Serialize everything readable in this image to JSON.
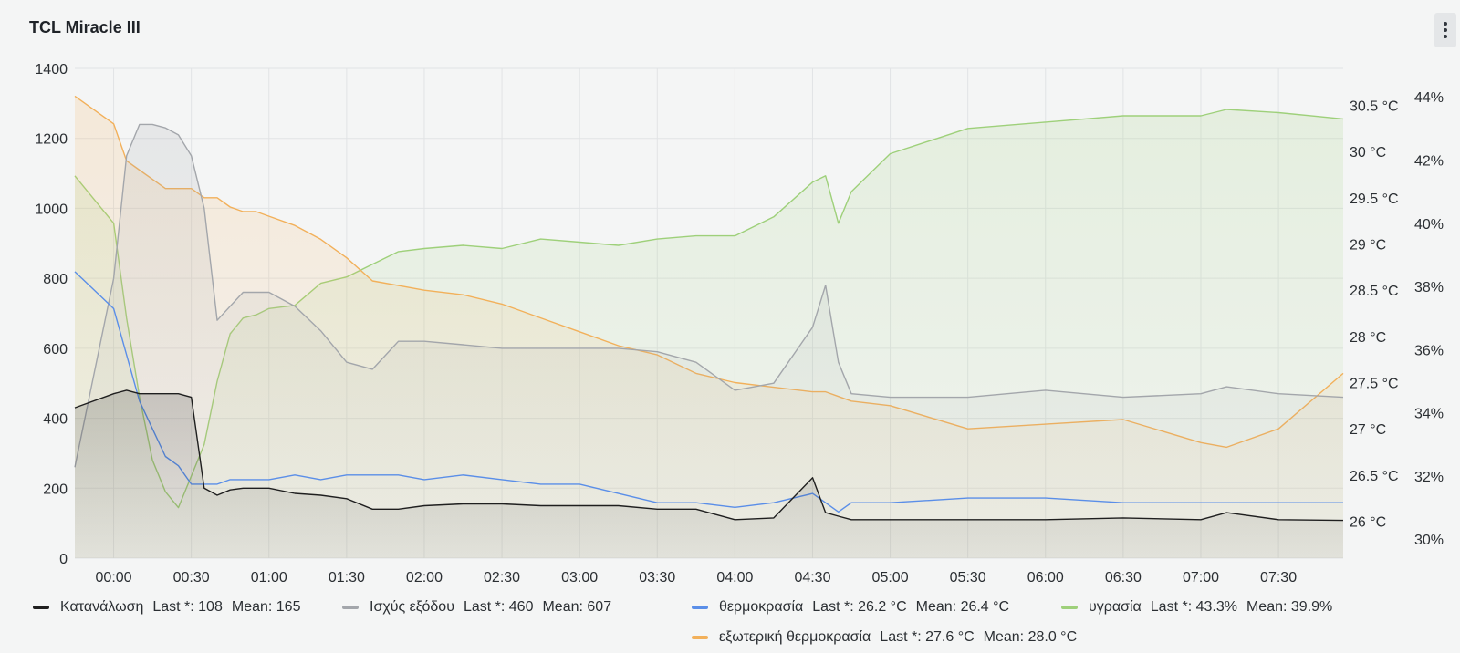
{
  "panel": {
    "title": "TCL Miracle III"
  },
  "chart_data": {
    "type": "line",
    "x": [
      "23:45",
      "00:00",
      "00:05",
      "00:10",
      "00:15",
      "00:20",
      "00:25",
      "00:30",
      "00:35",
      "00:40",
      "00:45",
      "00:50",
      "00:55",
      "01:00",
      "01:10",
      "01:20",
      "01:30",
      "01:40",
      "01:50",
      "02:00",
      "02:15",
      "02:30",
      "02:45",
      "03:00",
      "03:15",
      "03:30",
      "03:45",
      "04:00",
      "04:15",
      "04:30",
      "04:35",
      "04:40",
      "04:45",
      "05:00",
      "05:30",
      "06:00",
      "06:30",
      "07:00",
      "07:10",
      "07:30",
      "07:55"
    ],
    "xticks": [
      "00:00",
      "00:30",
      "01:00",
      "01:30",
      "02:00",
      "02:30",
      "03:00",
      "03:30",
      "04:00",
      "04:30",
      "05:00",
      "05:30",
      "06:00",
      "06:30",
      "07:00",
      "07:30"
    ],
    "axes": {
      "left": {
        "ticks": [
          "0",
          "200",
          "400",
          "600",
          "800",
          "1000",
          "1200",
          "1400"
        ],
        "ylim": [
          0,
          1400
        ]
      },
      "right_temp": {
        "ticks": [
          "26 °C",
          "26.5 °C",
          "27 °C",
          "27.5 °C",
          "28 °C",
          "28.5 °C",
          "29 °C",
          "29.5 °C",
          "30 °C",
          "30.5 °C"
        ],
        "ylim": [
          25.6,
          30.9
        ]
      },
      "right_hum": {
        "ticks": [
          "30%",
          "32%",
          "34%",
          "36%",
          "38%",
          "40%",
          "42%",
          "44%"
        ],
        "ylim": [
          29.4,
          44.9
        ]
      }
    },
    "series": [
      {
        "name": "Κατανάλωση",
        "axis": "left",
        "color": "#1f1f1f",
        "fill": true,
        "values": [
          430,
          470,
          480,
          470,
          470,
          470,
          470,
          460,
          200,
          180,
          195,
          200,
          200,
          200,
          185,
          180,
          170,
          140,
          140,
          150,
          155,
          155,
          150,
          150,
          150,
          140,
          140,
          110,
          115,
          230,
          130,
          120,
          110,
          110,
          110,
          110,
          115,
          110,
          130,
          110,
          108
        ]
      },
      {
        "name": "Ισχύς εξόδου",
        "axis": "left",
        "color": "#a3a6ab",
        "fill": true,
        "values": [
          260,
          800,
          1150,
          1240,
          1240,
          1230,
          1210,
          1150,
          1000,
          680,
          720,
          760,
          760,
          760,
          720,
          650,
          560,
          540,
          620,
          620,
          610,
          600,
          600,
          600,
          600,
          590,
          560,
          480,
          500,
          660,
          780,
          560,
          470,
          460,
          460,
          480,
          460,
          470,
          490,
          470,
          460
        ]
      },
      {
        "name": "θερμοκρασία",
        "axis": "right_temp",
        "color": "#5a8ee8",
        "fill": false,
        "values": [
          28.7,
          28.3,
          27.8,
          27.3,
          27.0,
          26.7,
          26.6,
          26.4,
          26.4,
          26.4,
          26.45,
          26.45,
          26.45,
          26.45,
          26.5,
          26.45,
          26.5,
          26.5,
          26.5,
          26.45,
          26.5,
          26.45,
          26.4,
          26.4,
          26.3,
          26.2,
          26.2,
          26.15,
          26.2,
          26.3,
          26.2,
          26.1,
          26.2,
          26.2,
          26.25,
          26.25,
          26.2,
          26.2,
          26.2,
          26.2,
          26.2
        ]
      },
      {
        "name": "υγρασία",
        "axis": "right_hum",
        "color": "#9ed07a",
        "fill": true,
        "values": [
          41.5,
          40.0,
          37.0,
          34.5,
          32.5,
          31.5,
          31.0,
          32.0,
          33.0,
          35.0,
          36.5,
          37.0,
          37.1,
          37.3,
          37.4,
          38.1,
          38.3,
          38.7,
          39.1,
          39.2,
          39.3,
          39.2,
          39.5,
          39.4,
          39.3,
          39.5,
          39.6,
          39.6,
          40.2,
          41.3,
          41.5,
          40.0,
          41.0,
          42.2,
          43.0,
          43.2,
          43.4,
          43.4,
          43.6,
          43.5,
          43.3
        ]
      },
      {
        "name": "εξωτερική θερμοκρασία",
        "axis": "right_temp",
        "color": "#f2b05a",
        "fill": true,
        "values": [
          30.6,
          30.3,
          29.9,
          29.8,
          29.7,
          29.6,
          29.6,
          29.6,
          29.5,
          29.5,
          29.4,
          29.35,
          29.35,
          29.3,
          29.2,
          29.05,
          28.85,
          28.6,
          28.55,
          28.5,
          28.45,
          28.35,
          28.2,
          28.05,
          27.9,
          27.8,
          27.6,
          27.5,
          27.45,
          27.4,
          27.4,
          27.35,
          27.3,
          27.25,
          27.0,
          27.05,
          27.1,
          26.85,
          26.8,
          27.0,
          27.6
        ]
      }
    ]
  },
  "legend": [
    {
      "name": "Κατανάλωση",
      "last_label": "Last *:",
      "last": "108",
      "mean_label": "Mean:",
      "mean": "165",
      "color": "#1f1f1f"
    },
    {
      "name": "Ισχύς εξόδου",
      "last_label": "Last *:",
      "last": "460",
      "mean_label": "Mean:",
      "mean": "607",
      "color": "#a3a6ab"
    },
    {
      "name": "θερμοκρασία",
      "last_label": "Last *:",
      "last": "26.2 °C",
      "mean_label": "Mean:",
      "mean": "26.4 °C",
      "color": "#5a8ee8"
    },
    {
      "name": "υγρασία",
      "last_label": "Last *:",
      "last": "43.3%",
      "mean_label": "Mean:",
      "mean": "39.9%",
      "color": "#9ed07a"
    },
    {
      "name": "εξωτερική θερμοκρασία",
      "last_label": "Last *:",
      "last": "27.6 °C",
      "mean_label": "Mean:",
      "mean": "28.0 °C",
      "color": "#f2b05a"
    }
  ]
}
